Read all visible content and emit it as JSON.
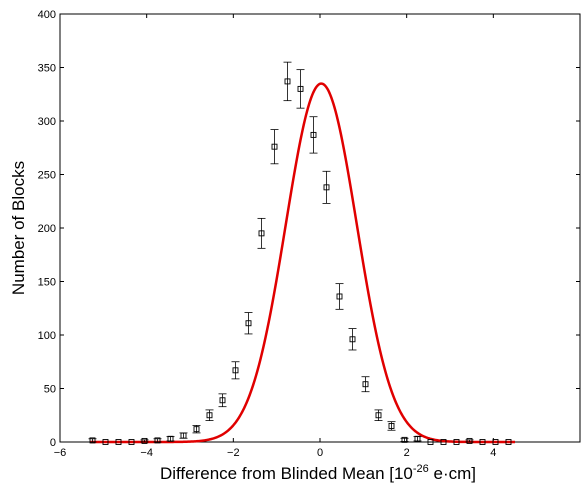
{
  "chart_data": {
    "type": "scatter",
    "title": "",
    "xlabel": "Difference from Blinded Mean [10",
    "xlabel_sup": "-26",
    "xlabel_unit": " e·cm]",
    "ylabel": "Number of Blocks",
    "xlim": [
      -6,
      6
    ],
    "ylim": [
      0,
      400
    ],
    "xticks": [
      -6,
      -4,
      -2,
      0,
      2,
      4
    ],
    "yticks": [
      0,
      50,
      100,
      150,
      200,
      250,
      300,
      350,
      400
    ],
    "grid": false,
    "legend": "none",
    "series": [
      {
        "marker": "square",
        "color": "#000000",
        "x": [
          -5.25,
          -4.95,
          -4.65,
          -4.35,
          -4.05,
          -3.75,
          -3.45,
          -3.15,
          -2.85,
          -2.55,
          -2.25,
          -1.95,
          -1.65,
          -1.35,
          -1.05,
          -0.75,
          -0.45,
          -0.15,
          0.15,
          0.45,
          0.75,
          1.05,
          1.35,
          1.65,
          1.95,
          2.25,
          2.55,
          2.85,
          3.15,
          3.45,
          3.75,
          4.05,
          4.35
        ],
        "y": [
          1.5,
          0,
          0,
          0,
          1,
          1.5,
          3,
          6,
          12,
          25,
          39,
          67,
          111,
          195,
          276,
          337,
          330,
          287,
          238,
          136,
          96,
          54,
          25,
          15,
          2,
          3,
          0,
          0,
          0,
          1,
          0,
          0,
          0
        ],
        "err": [
          1.5,
          0,
          0,
          0,
          1,
          1.5,
          2,
          2.5,
          3.5,
          5,
          6,
          8,
          10,
          14,
          16,
          18,
          18,
          17,
          15,
          12,
          10,
          7,
          5,
          4,
          1.5,
          2,
          0,
          0,
          0,
          1,
          0,
          0,
          0
        ]
      },
      {
        "type": "line",
        "color": "#e00000",
        "fit": "gaussian",
        "amplitude": 335,
        "mean": 0.03,
        "sigma": 0.82
      }
    ]
  }
}
